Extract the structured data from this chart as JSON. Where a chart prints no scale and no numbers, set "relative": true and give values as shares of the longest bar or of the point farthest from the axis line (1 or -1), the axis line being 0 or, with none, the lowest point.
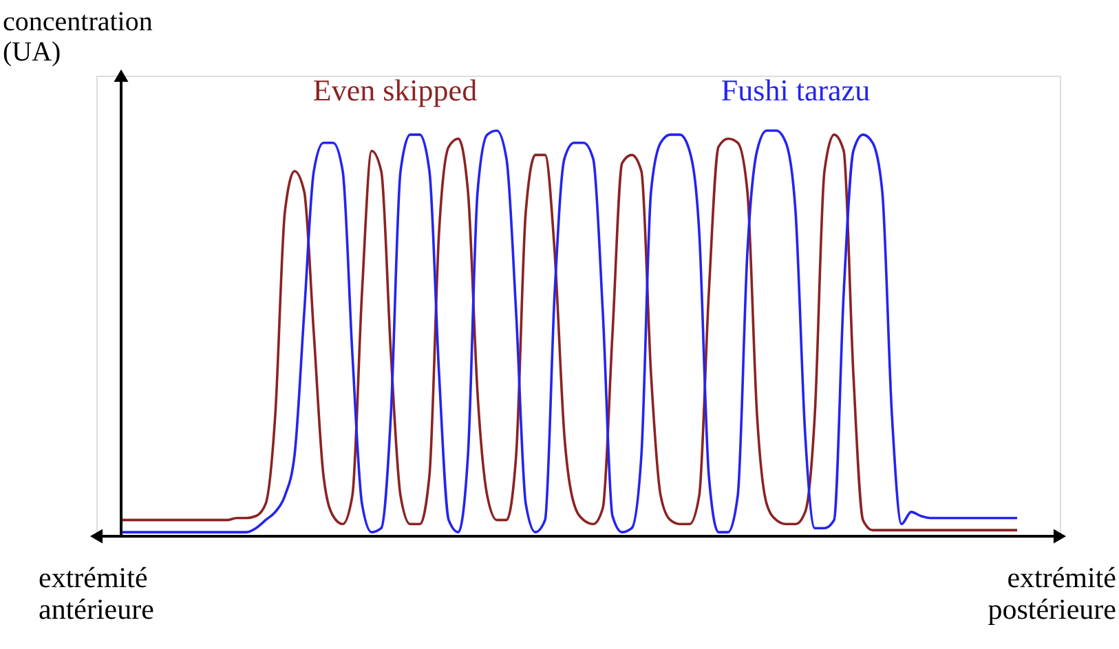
{
  "chart_data": {
    "type": "line",
    "relative": true,
    "legend": false,
    "grid": false,
    "tick_labels": false,
    "marker": "none",
    "line_style": "solid",
    "ylabel": "concentration\n(UA)",
    "annotations": [
      "extrémité\nantérieure",
      "extrémité\npostérieure"
    ],
    "categories": [
      null,
      null,
      null,
      null,
      null,
      null,
      null,
      null,
      null,
      null,
      null,
      null,
      null,
      null,
      null,
      null,
      null,
      null,
      null,
      null,
      null,
      null,
      null,
      null,
      null,
      null,
      null,
      null,
      null,
      null,
      null,
      null,
      null,
      null,
      null,
      null,
      null,
      null,
      null,
      null,
      null,
      null,
      null,
      null,
      null,
      null,
      null,
      null,
      null,
      null,
      null,
      null,
      null,
      null,
      null,
      null,
      null,
      null,
      null,
      null,
      null,
      null,
      null,
      null,
      null,
      null,
      null,
      null,
      null,
      null,
      null,
      null,
      null,
      null,
      null,
      null,
      null,
      null,
      null,
      null,
      null,
      null,
      null,
      null,
      null,
      null,
      null,
      null,
      null,
      null,
      null,
      null,
      null,
      null
    ],
    "series": [
      {
        "name": "Even skipped",
        "color": "#8b2323",
        "values": [
          0.04,
          0.04,
          0.04,
          0.04,
          0.04,
          0.04,
          0.04,
          0.04,
          0.04,
          0.04,
          0.04,
          0.04,
          0.045,
          0.045,
          0.05,
          0.08,
          0.3,
          0.8,
          0.9,
          0.85,
          0.5,
          0.15,
          0.05,
          0.03,
          0.1,
          0.6,
          0.95,
          0.9,
          0.45,
          0.1,
          0.03,
          0.03,
          0.15,
          0.75,
          0.96,
          0.98,
          0.85,
          0.35,
          0.1,
          0.04,
          0.04,
          0.2,
          0.8,
          0.94,
          0.94,
          0.7,
          0.25,
          0.08,
          0.04,
          0.03,
          0.07,
          0.5,
          0.92,
          0.94,
          0.9,
          0.4,
          0.1,
          0.04,
          0.03,
          0.03,
          0.1,
          0.6,
          0.96,
          0.98,
          0.97,
          0.85,
          0.3,
          0.08,
          0.04,
          0.03,
          0.03,
          0.06,
          0.3,
          0.9,
          0.99,
          0.95,
          0.4,
          0.04,
          0.015,
          0.015,
          0.015,
          0.015,
          0.015,
          0.015,
          0.015,
          0.015,
          0.015,
          0.015,
          0.015,
          0.015,
          0.015,
          0.015,
          0.015,
          0.015
        ]
      },
      {
        "name": "Fushi tarazu",
        "color": "#2424f0",
        "values": [
          0.01,
          0.01,
          0.01,
          0.01,
          0.01,
          0.01,
          0.01,
          0.01,
          0.01,
          0.01,
          0.01,
          0.01,
          0.01,
          0.01,
          0.02,
          0.04,
          0.06,
          0.1,
          0.2,
          0.55,
          0.9,
          0.97,
          0.97,
          0.9,
          0.45,
          0.08,
          0.01,
          0.02,
          0.3,
          0.9,
          0.99,
          0.99,
          0.9,
          0.4,
          0.04,
          0.01,
          0.2,
          0.85,
          0.99,
          1.0,
          0.93,
          0.55,
          0.08,
          0.01,
          0.04,
          0.6,
          0.93,
          0.97,
          0.97,
          0.93,
          0.55,
          0.05,
          0.01,
          0.02,
          0.2,
          0.85,
          0.97,
          0.99,
          0.99,
          0.95,
          0.75,
          0.15,
          0.01,
          0.01,
          0.1,
          0.7,
          0.95,
          1.0,
          1.0,
          0.97,
          0.8,
          0.25,
          0.02,
          0.02,
          0.04,
          0.6,
          0.95,
          0.99,
          0.97,
          0.85,
          0.3,
          0.03,
          0.06,
          0.05,
          0.045,
          0.045,
          0.045,
          0.045,
          0.045,
          0.045,
          0.045,
          0.045,
          0.045,
          0.045
        ]
      }
    ]
  }
}
